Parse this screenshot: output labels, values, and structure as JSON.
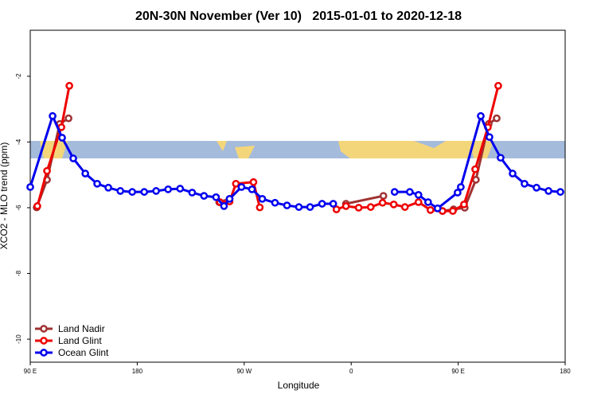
{
  "chart_data": {
    "type": "line",
    "title": "20N-30N November (Ver 10)   2015-01-01 to 2020-12-18",
    "x_label": "Longitude",
    "y_label": "XCO2 - MLO trend (ppm)",
    "xlim": [
      90,
      540
    ],
    "xticks": [
      {
        "value": 90,
        "label": "90 E"
      },
      180,
      {
        "value": 270,
        "label": "90 W"
      },
      {
        "value": 360,
        "label": "0"
      },
      {
        "value": 450,
        "label": "90 E"
      },
      {
        "value": 540,
        "label": "180"
      }
    ],
    "ylim": [
      -10.7,
      -0.6
    ],
    "yticks": [
      -2,
      -4,
      -6,
      -8,
      -10
    ],
    "legend": "bottom-left",
    "series": [
      {
        "name": "Land Nadir",
        "color": "#a03232",
        "x": [
          95.4,
          104.1,
          114.8,
          122.2,
          null,
          249,
          257.7,
          null,
          355.6,
          387.1,
          null,
          436.8,
          446.1,
          455.5,
          464.9,
          475.7,
          482.4
        ],
        "values": [
          -5.99,
          -5.15,
          -3.45,
          -3.28,
          null,
          -5.83,
          -5.73,
          null,
          -5.88,
          -5.64,
          null,
          -6.1,
          -6.05,
          -6.0,
          -5.15,
          -3.45,
          -3.28
        ]
      },
      {
        "name": "Land Glint",
        "color": "#ee0000",
        "x": [
          96.0,
          104.1,
          116.2,
          122.9,
          null,
          249.6,
          257.7,
          263,
          277.8,
          283.1,
          null,
          347.6,
          355.6,
          366.3,
          376.4,
          386.4,
          395.8,
          405.2,
          416.6,
          426.7,
          436.8,
          445.5,
          454.9,
          464.3,
          475,
          483.7
        ],
        "values": [
          -5.95,
          -4.88,
          -3.55,
          -2.29,
          null,
          -5.83,
          -5.81,
          -5.27,
          -5.22,
          -5.99,
          null,
          -6.05,
          -5.95,
          -6.0,
          -5.98,
          -5.85,
          -5.9,
          -5.98,
          -5.83,
          -6.07,
          -6.1,
          -6.1,
          -5.9,
          -4.83,
          -3.55,
          -2.29
        ]
      },
      {
        "name": "Ocean Glint",
        "color": "#0000ee",
        "x": [
          90,
          108.8,
          116.8,
          126.2,
          136.3,
          146.3,
          155.7,
          165.8,
          175.8,
          185.9,
          195.9,
          206,
          216.1,
          226.2,
          236.2,
          246.3,
          253,
          257.7,
          267.7,
          276.5,
          285.2,
          295.9,
          306,
          316,
          325.4,
          335.5,
          344.9,
          null,
          396.5,
          409.3,
          416.6,
          424.7,
          432.7,
          449.5,
          452.2,
          469,
          476.3,
          485.7,
          495.8,
          505.8,
          515.9,
          526,
          536
        ],
        "values": [
          -5.37,
          -3.21,
          -3.87,
          -4.5,
          -4.96,
          -5.27,
          -5.39,
          -5.49,
          -5.52,
          -5.52,
          -5.49,
          -5.44,
          -5.42,
          -5.54,
          -5.64,
          -5.68,
          -5.95,
          -5.73,
          -5.37,
          -5.44,
          -5.73,
          -5.85,
          -5.93,
          -5.98,
          -5.98,
          -5.88,
          -5.88,
          null,
          -5.52,
          -5.52,
          -5.61,
          -5.83,
          -6.02,
          -5.54,
          -5.37,
          -3.21,
          -3.85,
          -4.48,
          -4.96,
          -5.27,
          -5.39,
          -5.49,
          -5.52
        ]
      }
    ]
  }
}
